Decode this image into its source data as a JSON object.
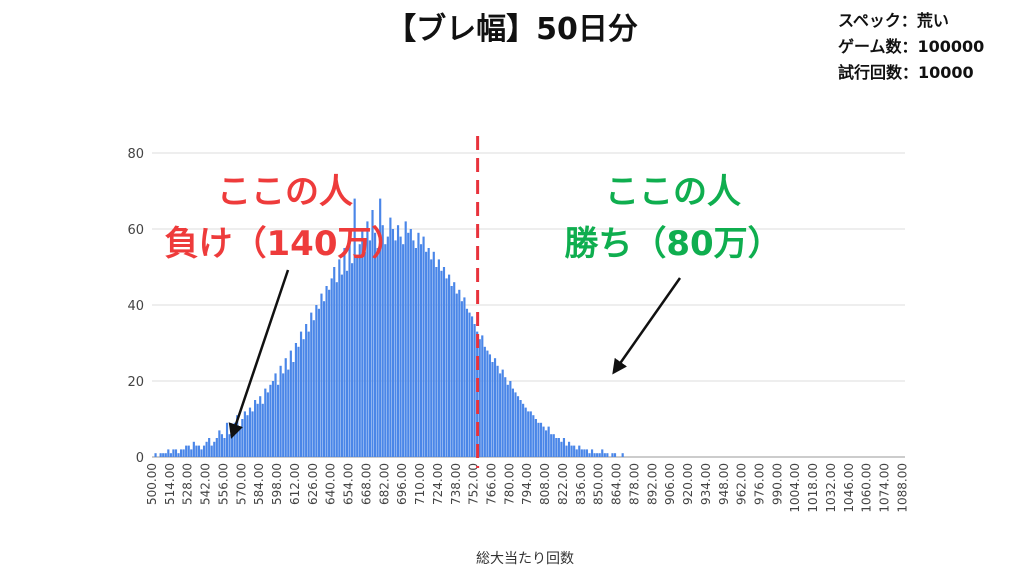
{
  "page": {
    "title": "【ブレ幅】50日分",
    "info_lines": [
      "スペック：荒い",
      "ゲーム数：100000",
      "試行回数：10000"
    ]
  },
  "annotations": {
    "left": {
      "line1": "ここの人",
      "line2": "負け（140万）",
      "color": "#ee3b3b"
    },
    "right": {
      "line1": "ここの人",
      "line2": "勝ち（80万）",
      "color": "#0fae4f"
    }
  },
  "colors": {
    "bar": "#4a86e8",
    "center_line": "#e8323c",
    "grid": "#dddddd",
    "axis_text": "#444444"
  },
  "chart_data": {
    "type": "bar",
    "xlabel": "総大当たり回数",
    "ylabel": "",
    "ylim": [
      0,
      80
    ],
    "yticks": [
      0,
      20,
      40,
      60,
      80
    ],
    "xticks": [
      "500.00",
      "514.00",
      "528.00",
      "542.00",
      "556.00",
      "570.00",
      "584.00",
      "598.00",
      "612.00",
      "626.00",
      "640.00",
      "654.00",
      "668.00",
      "682.00",
      "696.00",
      "710.00",
      "724.00",
      "738.00",
      "752.00",
      "766.00",
      "780.00",
      "794.00",
      "808.00",
      "822.00",
      "836.00",
      "850.00",
      "864.00",
      "878.00",
      "892.00",
      "906.00",
      "920.00",
      "934.00",
      "948.00",
      "962.00",
      "976.00",
      "990.00",
      "1004.00",
      "1018.00",
      "1032.00",
      "1046.00",
      "1060.00",
      "1074.00",
      "1088.00"
    ],
    "x_start": 500,
    "x_step": 2,
    "center_x": 752,
    "values": [
      0,
      1,
      0,
      1,
      1,
      1,
      2,
      1,
      2,
      2,
      1,
      2,
      2,
      3,
      3,
      2,
      4,
      3,
      3,
      2,
      3,
      4,
      5,
      3,
      4,
      5,
      7,
      6,
      5,
      9,
      6,
      7,
      9,
      11,
      8,
      10,
      12,
      11,
      13,
      12,
      15,
      14,
      16,
      14,
      18,
      17,
      19,
      20,
      22,
      19,
      24,
      22,
      26,
      23,
      28,
      25,
      30,
      29,
      33,
      31,
      35,
      33,
      38,
      36,
      40,
      39,
      43,
      41,
      45,
      44,
      47,
      50,
      46,
      52,
      48,
      55,
      49,
      57,
      51,
      68,
      53,
      56,
      60,
      54,
      62,
      57,
      65,
      59,
      55,
      68,
      61,
      56,
      58,
      63,
      60,
      57,
      61,
      58,
      56,
      62,
      59,
      60,
      57,
      55,
      59,
      56,
      58,
      54,
      55,
      52,
      54,
      50,
      52,
      49,
      50,
      47,
      48,
      45,
      46,
      43,
      44,
      41,
      42,
      39,
      38,
      37,
      35,
      33,
      31,
      32,
      29,
      28,
      27,
      25,
      26,
      24,
      22,
      23,
      21,
      19,
      20,
      18,
      17,
      16,
      15,
      14,
      13,
      12,
      12,
      11,
      10,
      9,
      9,
      8,
      7,
      8,
      6,
      6,
      5,
      5,
      4,
      5,
      3,
      4,
      3,
      3,
      2,
      3,
      2,
      2,
      2,
      1,
      2,
      1,
      1,
      1,
      2,
      1,
      1,
      0,
      1,
      1,
      0,
      0,
      1,
      0,
      0,
      0,
      0,
      0,
      0,
      0,
      0,
      0,
      0,
      0,
      0
    ]
  }
}
